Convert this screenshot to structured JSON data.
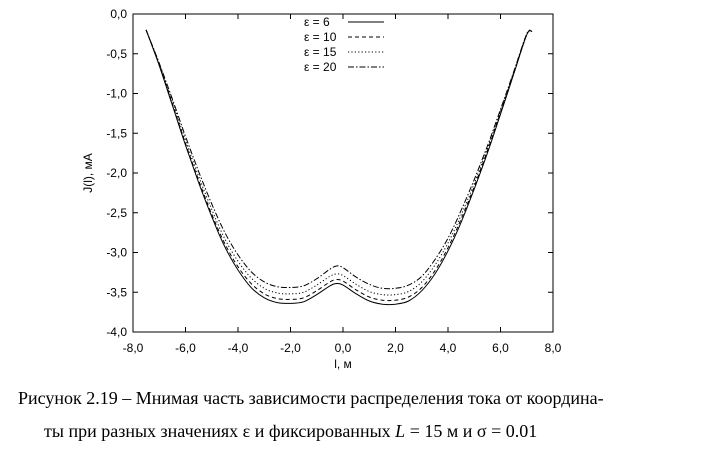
{
  "chart_data": {
    "type": "line",
    "title": "",
    "xlabel": "l, м",
    "ylabel": "J(l), мА",
    "xlim": [
      -8,
      8
    ],
    "ylim": [
      -4,
      0
    ],
    "xticks": [
      "-8,0",
      "-6,0",
      "-4,0",
      "-2,0",
      "0,0",
      "2,0",
      "4,0",
      "6,0",
      "8,0"
    ],
    "yticks": [
      "0,0",
      "-0,5",
      "-1,0",
      "-1,5",
      "-2,0",
      "-2,5",
      "-3,0",
      "-3,5",
      "-4,0"
    ],
    "legend_position": "top-center",
    "grid": false,
    "x": [
      -7.5,
      -7.0,
      -6.5,
      -6.0,
      -5.5,
      -5.0,
      -4.5,
      -4.0,
      -3.5,
      -3.0,
      -2.5,
      -2.0,
      -1.5,
      -1.0,
      -0.5,
      -0.25,
      0.0,
      0.5,
      1.0,
      1.5,
      2.0,
      2.5,
      3.0,
      3.5,
      4.0,
      4.5,
      5.0,
      5.5,
      6.0,
      6.5,
      7.0,
      7.2
    ],
    "series": [
      {
        "name": "ε = 6",
        "dash": "solid",
        "values": [
          -0.2,
          -0.65,
          -1.15,
          -1.65,
          -2.12,
          -2.55,
          -2.93,
          -3.22,
          -3.44,
          -3.57,
          -3.63,
          -3.64,
          -3.62,
          -3.53,
          -3.42,
          -3.39,
          -3.41,
          -3.52,
          -3.61,
          -3.65,
          -3.65,
          -3.61,
          -3.48,
          -3.27,
          -2.98,
          -2.62,
          -2.2,
          -1.75,
          -1.26,
          -0.76,
          -0.26,
          -0.22
        ]
      },
      {
        "name": "ε = 10",
        "dash": "dashed",
        "values": [
          -0.2,
          -0.64,
          -1.13,
          -1.63,
          -2.09,
          -2.52,
          -2.89,
          -3.18,
          -3.39,
          -3.52,
          -3.58,
          -3.59,
          -3.57,
          -3.48,
          -3.37,
          -3.34,
          -3.36,
          -3.47,
          -3.56,
          -3.6,
          -3.6,
          -3.56,
          -3.44,
          -3.23,
          -2.94,
          -2.58,
          -2.17,
          -1.72,
          -1.24,
          -0.75,
          -0.26,
          -0.22
        ]
      },
      {
        "name": "ε = 15",
        "dash": "dotted",
        "values": [
          -0.2,
          -0.63,
          -1.1,
          -1.59,
          -2.04,
          -2.46,
          -2.83,
          -3.11,
          -3.32,
          -3.45,
          -3.51,
          -3.52,
          -3.5,
          -3.41,
          -3.3,
          -3.27,
          -3.29,
          -3.4,
          -3.49,
          -3.53,
          -3.53,
          -3.49,
          -3.37,
          -3.16,
          -2.88,
          -2.53,
          -2.13,
          -1.69,
          -1.22,
          -0.74,
          -0.25,
          -0.22
        ]
      },
      {
        "name": "ε = 20",
        "dash": "dashdot",
        "values": [
          -0.2,
          -0.62,
          -1.07,
          -1.54,
          -1.98,
          -2.39,
          -2.75,
          -3.03,
          -3.24,
          -3.37,
          -3.43,
          -3.44,
          -3.42,
          -3.33,
          -3.21,
          -3.17,
          -3.19,
          -3.31,
          -3.4,
          -3.45,
          -3.45,
          -3.41,
          -3.3,
          -3.09,
          -2.82,
          -2.47,
          -2.08,
          -1.66,
          -1.2,
          -0.73,
          -0.25,
          -0.22
        ]
      }
    ]
  },
  "caption": {
    "line1": "Рисунок 2.19 – Мнимая часть зависимости распределения тока от координа-",
    "line2_a": "ты при разных значениях ε и фиксированных ",
    "line2_L": "L",
    "line2_b": " = 15 м и σ = 0.01"
  }
}
